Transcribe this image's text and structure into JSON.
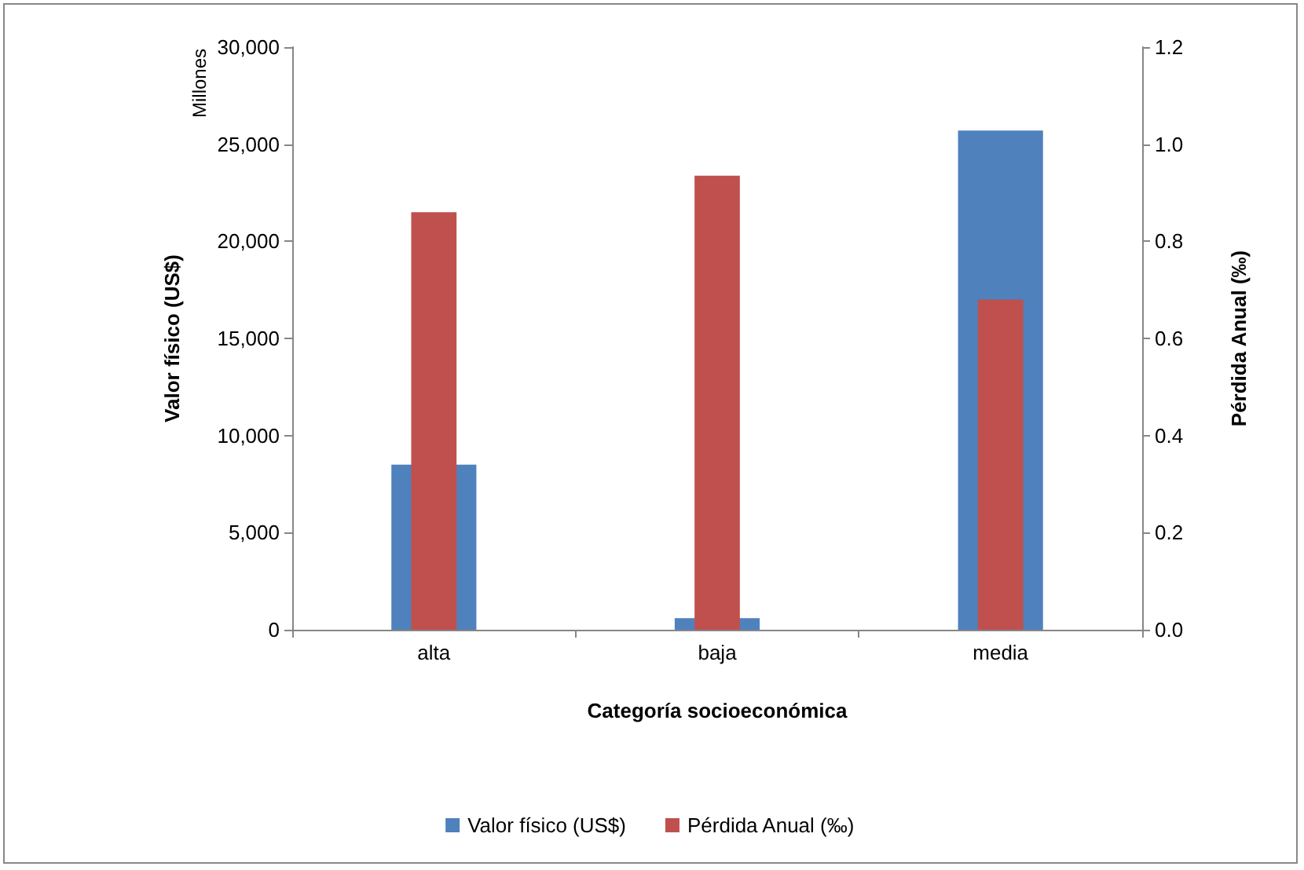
{
  "chart_data": {
    "type": "bar",
    "xlabel": "Categoría socioeconómica",
    "ylabel": "Valor físico (US$)",
    "y2label": "Pérdida Anual (‰)",
    "annotations": [
      "Millones"
    ],
    "categories": [
      "alta",
      "baja",
      "media"
    ],
    "series": [
      {
        "name": "Valor físico (US$)",
        "color": "#4f81bd",
        "values": [
          8500,
          600,
          25700
        ]
      },
      {
        "name": "Pérdida Anual (‰)",
        "color": "#c0504d",
        "values": [
          0.86,
          0.935,
          0.68
        ],
        "axis": "y2"
      }
    ],
    "ylim": [
      0,
      30000
    ],
    "yticks": [
      {
        "value": 0,
        "label": "0"
      },
      {
        "value": 5000,
        "label": "5,000"
      },
      {
        "value": 10000,
        "label": "10,000"
      },
      {
        "value": 15000,
        "label": "15,000"
      },
      {
        "value": 20000,
        "label": "20,000"
      },
      {
        "value": 25000,
        "label": "25,000"
      },
      {
        "value": 30000,
        "label": "30,000"
      }
    ],
    "y2lim": [
      0,
      1.2
    ],
    "y2ticks": [
      {
        "value": 0,
        "label": "0.0"
      },
      {
        "value": 0.2,
        "label": "0.2"
      },
      {
        "value": 0.4,
        "label": "0.4"
      },
      {
        "value": 0.6,
        "label": "0.6"
      },
      {
        "value": 0.8,
        "label": "0.8"
      },
      {
        "value": 1,
        "label": "1.0"
      },
      {
        "value": 1.2,
        "label": "1.2"
      }
    ],
    "grid": false,
    "legend": "bottom"
  }
}
